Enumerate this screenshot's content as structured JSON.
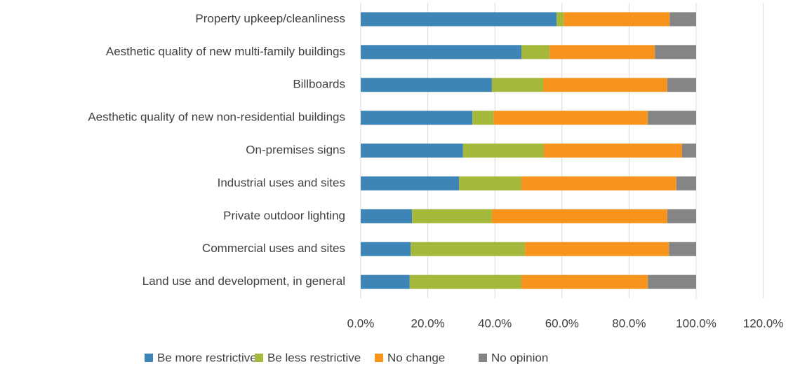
{
  "chart_data": {
    "type": "stacked-barh",
    "categories": [
      "Property upkeep/cleanliness",
      "Aesthetic quality of new multi-family buildings",
      "Billboards",
      "Aesthetic quality of new non-residential buildings",
      "On-premises signs",
      "Industrial uses and sites",
      "Private outdoor lighting",
      "Commercial uses and sites",
      "Land use and development, in general"
    ],
    "series": [
      {
        "name": "Be more restrictive",
        "color": "#3d85b6",
        "values": [
          58.4,
          47.9,
          39.1,
          33.3,
          30.5,
          29.3,
          15.3,
          14.9,
          14.6
        ]
      },
      {
        "name": "Be less restrictive",
        "color": "#a4b83b",
        "values": [
          2.1,
          8.4,
          15.3,
          6.3,
          24.1,
          18.6,
          23.8,
          34.1,
          33.3
        ]
      },
      {
        "name": "No change",
        "color": "#f7941e",
        "values": [
          31.6,
          31.4,
          37.0,
          46.0,
          41.2,
          46.2,
          52.3,
          42.9,
          37.7
        ]
      },
      {
        "name": "No opinion",
        "color": "#858585",
        "values": [
          7.9,
          12.3,
          8.6,
          14.4,
          4.2,
          5.9,
          8.6,
          8.1,
          14.4
        ]
      }
    ],
    "xlim": [
      0,
      120
    ],
    "xticks": [
      {
        "value": 0,
        "label": "0.0%"
      },
      {
        "value": 20,
        "label": "20.0%"
      },
      {
        "value": 40,
        "label": "40.0%"
      },
      {
        "value": 60,
        "label": "60.0%"
      },
      {
        "value": 80,
        "label": "80.0%"
      },
      {
        "value": 100,
        "label": "100.0%"
      },
      {
        "value": 120,
        "label": "120.0%"
      }
    ],
    "grid": true,
    "legend": "bottom"
  }
}
